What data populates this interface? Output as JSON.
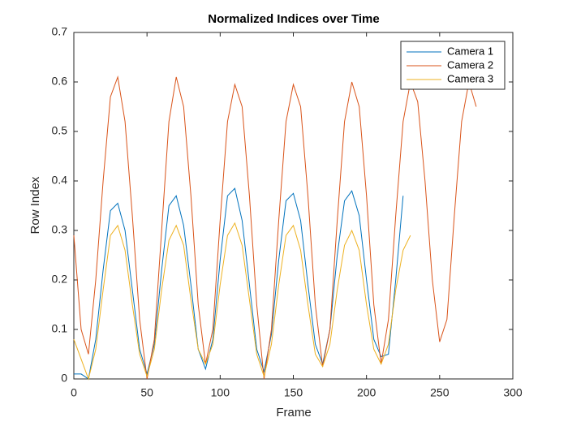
{
  "chart_data": {
    "type": "line",
    "title": "Normalized Indices over Time",
    "xlabel": "Frame",
    "ylabel": "Row Index",
    "xlim": [
      0,
      300
    ],
    "xticks": [
      0,
      50,
      100,
      150,
      200,
      250,
      300
    ],
    "ylim": [
      0,
      0.7
    ],
    "yticks": [
      0,
      0.1,
      0.2,
      0.3,
      0.4,
      0.5,
      0.6,
      0.7
    ],
    "legend": "upper right",
    "series": [
      {
        "name": "Camera 1",
        "color": "#0072bd",
        "x": [
          0,
          5,
          10,
          15,
          20,
          25,
          30,
          35,
          40,
          45,
          50,
          55,
          60,
          65,
          70,
          75,
          80,
          85,
          90,
          95,
          100,
          105,
          110,
          115,
          120,
          125,
          130,
          135,
          140,
          145,
          150,
          155,
          160,
          165,
          170,
          175,
          180,
          185,
          190,
          195,
          200,
          205,
          210,
          215,
          220,
          225
        ],
        "values": [
          0.01,
          0.01,
          0.0,
          0.08,
          0.22,
          0.34,
          0.355,
          0.3,
          0.18,
          0.06,
          0.01,
          0.07,
          0.22,
          0.35,
          0.37,
          0.31,
          0.19,
          0.06,
          0.02,
          0.08,
          0.24,
          0.37,
          0.385,
          0.32,
          0.19,
          0.06,
          0.015,
          0.09,
          0.24,
          0.36,
          0.375,
          0.32,
          0.19,
          0.07,
          0.03,
          0.1,
          0.25,
          0.36,
          0.38,
          0.33,
          0.2,
          0.08,
          0.045,
          0.05,
          0.2,
          0.37
        ]
      },
      {
        "name": "Camera 2",
        "color": "#d95319",
        "x": [
          0,
          5,
          10,
          15,
          20,
          25,
          30,
          35,
          40,
          45,
          50,
          55,
          60,
          65,
          70,
          75,
          80,
          85,
          90,
          95,
          100,
          105,
          110,
          115,
          120,
          125,
          130,
          135,
          140,
          145,
          150,
          155,
          160,
          165,
          170,
          175,
          180,
          185,
          190,
          195,
          200,
          205,
          210,
          215,
          220,
          225,
          230,
          235,
          240,
          245,
          250,
          255,
          260,
          265,
          270,
          275
        ],
        "values": [
          0.29,
          0.1,
          0.05,
          0.2,
          0.4,
          0.57,
          0.61,
          0.52,
          0.33,
          0.12,
          0.0,
          0.08,
          0.3,
          0.52,
          0.61,
          0.55,
          0.37,
          0.15,
          0.03,
          0.1,
          0.32,
          0.52,
          0.595,
          0.55,
          0.37,
          0.15,
          0.0,
          0.1,
          0.32,
          0.52,
          0.595,
          0.55,
          0.37,
          0.15,
          0.025,
          0.1,
          0.32,
          0.52,
          0.6,
          0.55,
          0.37,
          0.15,
          0.03,
          0.12,
          0.33,
          0.52,
          0.6,
          0.56,
          0.4,
          0.2,
          0.075,
          0.12,
          0.33,
          0.52,
          0.6,
          0.55
        ]
      },
      {
        "name": "Camera 3",
        "color": "#edb120",
        "x": [
          0,
          5,
          10,
          15,
          20,
          25,
          30,
          35,
          40,
          45,
          50,
          55,
          60,
          65,
          70,
          75,
          80,
          85,
          90,
          95,
          100,
          105,
          110,
          115,
          120,
          125,
          130,
          135,
          140,
          145,
          150,
          155,
          160,
          165,
          170,
          175,
          180,
          185,
          190,
          195,
          200,
          205,
          210,
          215,
          220,
          225,
          230
        ],
        "values": [
          0.08,
          0.04,
          0.0,
          0.06,
          0.18,
          0.29,
          0.31,
          0.26,
          0.15,
          0.05,
          0.005,
          0.06,
          0.18,
          0.28,
          0.31,
          0.27,
          0.16,
          0.06,
          0.03,
          0.07,
          0.19,
          0.29,
          0.315,
          0.27,
          0.16,
          0.05,
          0.005,
          0.07,
          0.19,
          0.29,
          0.31,
          0.26,
          0.15,
          0.05,
          0.025,
          0.07,
          0.18,
          0.27,
          0.3,
          0.26,
          0.15,
          0.06,
          0.03,
          0.07,
          0.18,
          0.26,
          0.29
        ]
      }
    ]
  }
}
